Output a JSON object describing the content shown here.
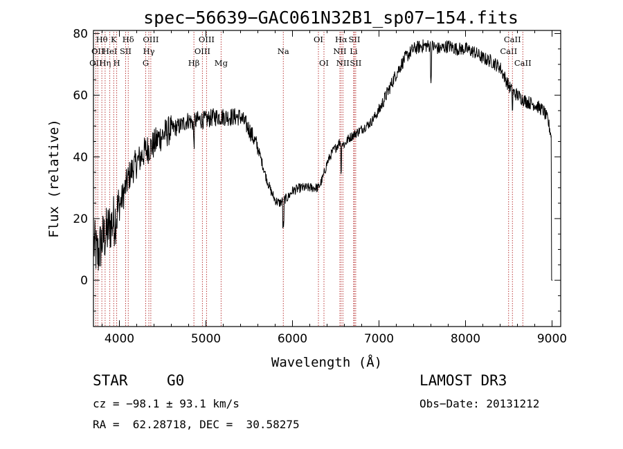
{
  "info": {
    "object_type": "STAR",
    "subclass": "G0",
    "survey": "LAMOST DR3",
    "cz": "cz = −98.1 ± 93.1 km/s",
    "obs_date": "Obs−Date: 20131212",
    "radec": "RA =  62.28718, DEC =  30.58275"
  },
  "chart_data": {
    "type": "line",
    "title": "spec−56639−GAC061N32B1_sp07−154.fits",
    "xlabel": "Wavelength (Å)",
    "ylabel": "Flux (relative)",
    "xlim": [
      3700,
      9100
    ],
    "ylim": [
      -15,
      81
    ],
    "xticks": [
      4000,
      5000,
      6000,
      7000,
      8000,
      9000
    ],
    "yticks": [
      0,
      20,
      40,
      60,
      80
    ],
    "grid": false,
    "series": [
      {
        "name": "flux",
        "x": [
          3700,
          3750,
          3800,
          3850,
          3900,
          3950,
          4000,
          4050,
          4100,
          4150,
          4200,
          4250,
          4300,
          4350,
          4400,
          4450,
          4500,
          4600,
          4700,
          4800,
          4850,
          4900,
          5000,
          5100,
          5200,
          5300,
          5400,
          5500,
          5600,
          5700,
          5750,
          5800,
          5850,
          5900,
          5950,
          6000,
          6100,
          6200,
          6300,
          6350,
          6400,
          6450,
          6500,
          6550,
          6600,
          6650,
          6700,
          6750,
          6800,
          6900,
          7000,
          7100,
          7200,
          7300,
          7400,
          7500,
          7600,
          7700,
          7800,
          7900,
          8000,
          8100,
          8200,
          8300,
          8400,
          8450,
          8500,
          8550,
          8600,
          8700,
          8800,
          8900,
          8950,
          8990
        ],
        "y": [
          12,
          8,
          13,
          15,
          18,
          20,
          24,
          28,
          33,
          36,
          38,
          40,
          42,
          43,
          44,
          46,
          47,
          49,
          50,
          52,
          51,
          52,
          52,
          53,
          53,
          53,
          53,
          49,
          43,
          33,
          29,
          26,
          25,
          26,
          27,
          29,
          30,
          30,
          30,
          33,
          38,
          41,
          43,
          45,
          44,
          46,
          47,
          48,
          49,
          51,
          55,
          61,
          67,
          72,
          75,
          76,
          76,
          75,
          76,
          75,
          75,
          74,
          72,
          71,
          69,
          66,
          63,
          61,
          60,
          58,
          57,
          55,
          52,
          47
        ]
      }
    ],
    "line_markers": [
      {
        "lambda": 3727,
        "label": "OII",
        "row": 2
      },
      {
        "lambda": 3750,
        "label": "OII",
        "row": 1
      },
      {
        "lambda": 3797,
        "label": "Hθ",
        "row": 0
      },
      {
        "lambda": 3835,
        "label": "Hη",
        "row": 2
      },
      {
        "lambda": 3889,
        "label": "HeI",
        "row": 1
      },
      {
        "lambda": 3934,
        "label": "K",
        "row": 0
      },
      {
        "lambda": 3969,
        "label": "H",
        "row": 2
      },
      {
        "lambda": 4072,
        "label": "SII",
        "row": 1
      },
      {
        "lambda": 4102,
        "label": "Hδ",
        "row": 0
      },
      {
        "lambda": 4304,
        "label": "G",
        "row": 2
      },
      {
        "lambda": 4340,
        "label": "Hγ",
        "row": 1
      },
      {
        "lambda": 4363,
        "label": "OIII",
        "row": 0
      },
      {
        "lambda": 4861,
        "label": "Hβ",
        "row": 2
      },
      {
        "lambda": 4959,
        "label": "OIII",
        "row": 1
      },
      {
        "lambda": 5007,
        "label": "OIII",
        "row": 0
      },
      {
        "lambda": 5175,
        "label": "Mg",
        "row": 2
      },
      {
        "lambda": 5894,
        "label": "Na",
        "row": 1
      },
      {
        "lambda": 6300,
        "label": "OI",
        "row": 0
      },
      {
        "lambda": 6364,
        "label": "OI",
        "row": 2
      },
      {
        "lambda": 6548,
        "label": "NII",
        "row": 1
      },
      {
        "lambda": 6563,
        "label": "Hα",
        "row": 0
      },
      {
        "lambda": 6583,
        "label": "NII",
        "row": 2
      },
      {
        "lambda": 6707,
        "label": "Li",
        "row": 1
      },
      {
        "lambda": 6716,
        "label": "SII",
        "row": 0
      },
      {
        "lambda": 6731,
        "label": "SII",
        "row": 2
      },
      {
        "lambda": 8498,
        "label": "CaII",
        "row": 1
      },
      {
        "lambda": 8542,
        "label": "CaII",
        "row": 0
      },
      {
        "lambda": 8662,
        "label": "CaII",
        "row": 2
      }
    ]
  }
}
